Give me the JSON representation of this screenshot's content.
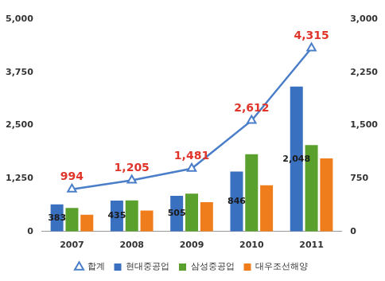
{
  "chart_data": {
    "type": "bar",
    "categories": [
      "2007",
      "2008",
      "2009",
      "2010",
      "2011"
    ],
    "series": [
      {
        "name": "합계",
        "type": "line",
        "axis": "y",
        "color": "#4a7ec8",
        "marker": "triangle",
        "values": [
          994,
          1205,
          1481,
          2612,
          4315
        ],
        "value_labels": [
          "994",
          "1,205",
          "1,481",
          "2,612",
          "4,315"
        ],
        "data_labels": true
      },
      {
        "name": "현대중공업",
        "type": "bar",
        "axis": "y2",
        "color": "#3a70c0",
        "values": [
          383,
          435,
          505,
          846,
          2048
        ],
        "value_labels": [
          "383",
          "435",
          "505",
          "846",
          "2,048"
        ],
        "data_labels": true
      },
      {
        "name": "삼성중공업",
        "type": "bar",
        "axis": "y2",
        "color": "#5aa02c",
        "values": [
          332,
          439,
          534,
          1091,
          1221
        ]
      },
      {
        "name": "대우조선해양",
        "type": "bar",
        "axis": "y2",
        "color": "#f07d1c",
        "values": [
          237,
          296,
          415,
          652,
          1032
        ]
      }
    ],
    "ylim": [
      0,
      5000
    ],
    "yticks": [
      0,
      {
        "value": 1250,
        "label": "1,250"
      },
      {
        "value": 2500,
        "label": "2,500"
      },
      {
        "value": 3750,
        "label": "3,750"
      },
      {
        "value": 5000,
        "label": "5,000"
      }
    ],
    "y2lim": [
      0,
      3000
    ],
    "y2ticks": [
      0,
      750,
      {
        "value": 1500,
        "label": "1,500"
      },
      {
        "value": 2250,
        "label": "2,250"
      },
      {
        "value": 3000,
        "label": "3,000"
      }
    ],
    "grid": false,
    "legend": "bottom"
  }
}
